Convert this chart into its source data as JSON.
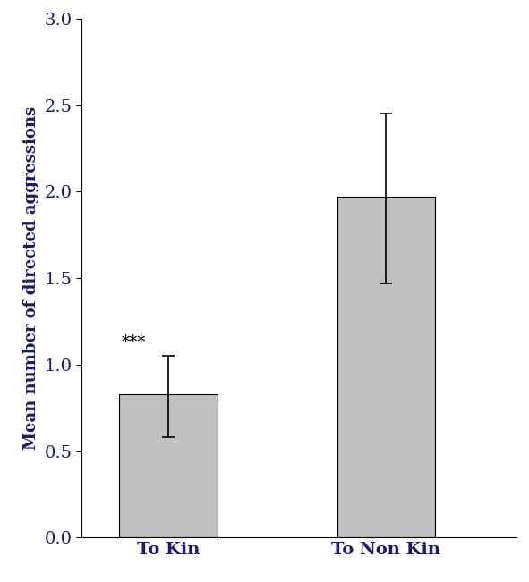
{
  "categories": [
    "To Kin",
    "To Non Kin"
  ],
  "values": [
    0.83,
    1.97
  ],
  "errors_upper": [
    0.22,
    0.48
  ],
  "errors_lower": [
    0.25,
    0.5
  ],
  "bar_color": "#c0c0c0",
  "bar_edge_color": "#000000",
  "bar_width": 0.45,
  "bar_positions": [
    1,
    2
  ],
  "annotation": "***",
  "annotation_bar_index": 0,
  "ylabel": "Mean number of directed aggressions",
  "ylim": [
    0,
    3.0
  ],
  "yticks": [
    0.0,
    0.5,
    1.0,
    1.5,
    2.0,
    2.5,
    3.0
  ],
  "capsize": 5,
  "error_linewidth": 1.2,
  "bar_linewidth": 0.8,
  "tick_label_fontsize": 14,
  "ylabel_fontsize": 13,
  "annotation_fontsize": 13,
  "tick_color": "#1a1a6e",
  "label_color": "#1a1a6e",
  "background_color": "#ffffff"
}
